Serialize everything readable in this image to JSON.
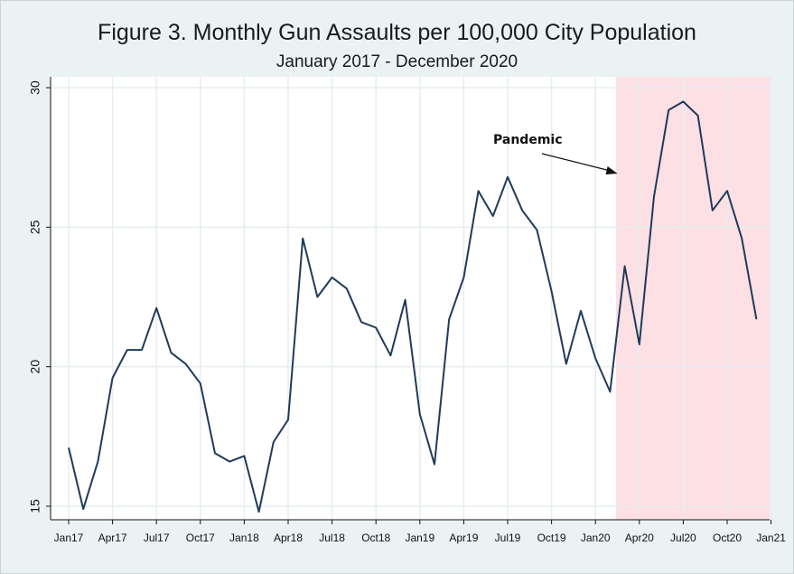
{
  "chart_data": {
    "type": "line",
    "title": "Figure 3. Monthly Gun Assaults per 100,000 City Population",
    "subtitle": "January 2017 - December 2020",
    "xlabel": "",
    "ylabel": "",
    "ylim": [
      15,
      30
    ],
    "yticks": [
      15,
      20,
      25,
      30
    ],
    "xticks": [
      "Jan17",
      "Apr17",
      "Jul17",
      "Oct17",
      "Jan18",
      "Apr18",
      "Jul18",
      "Oct18",
      "Jan19",
      "Apr19",
      "Jul19",
      "Oct19",
      "Jan20",
      "Apr20",
      "Jul20",
      "Oct20",
      "Jan21"
    ],
    "grid": true,
    "series": [
      {
        "color": "#1f3b5a",
        "start": "Jan17",
        "values": [
          17.1,
          14.9,
          16.6,
          19.6,
          20.6,
          20.6,
          22.1,
          20.5,
          20.1,
          19.4,
          16.9,
          16.6,
          16.8,
          14.8,
          17.3,
          18.1,
          24.6,
          22.5,
          23.2,
          22.8,
          21.6,
          21.4,
          20.4,
          22.4,
          18.3,
          16.5,
          21.7,
          23.2,
          26.3,
          25.4,
          26.8,
          25.6,
          24.9,
          22.7,
          20.1,
          22.0,
          20.3,
          19.1,
          23.6,
          20.8,
          26.1,
          29.2,
          29.5,
          29.0,
          25.6,
          26.3,
          24.6,
          21.7
        ]
      }
    ],
    "shaded_region": {
      "label": "Pandemic",
      "start": "Mar20",
      "end": "Jan21",
      "color": "#fde0e4"
    },
    "annotation": {
      "text": "Pandemic",
      "arrow_to": "Mar20"
    }
  }
}
